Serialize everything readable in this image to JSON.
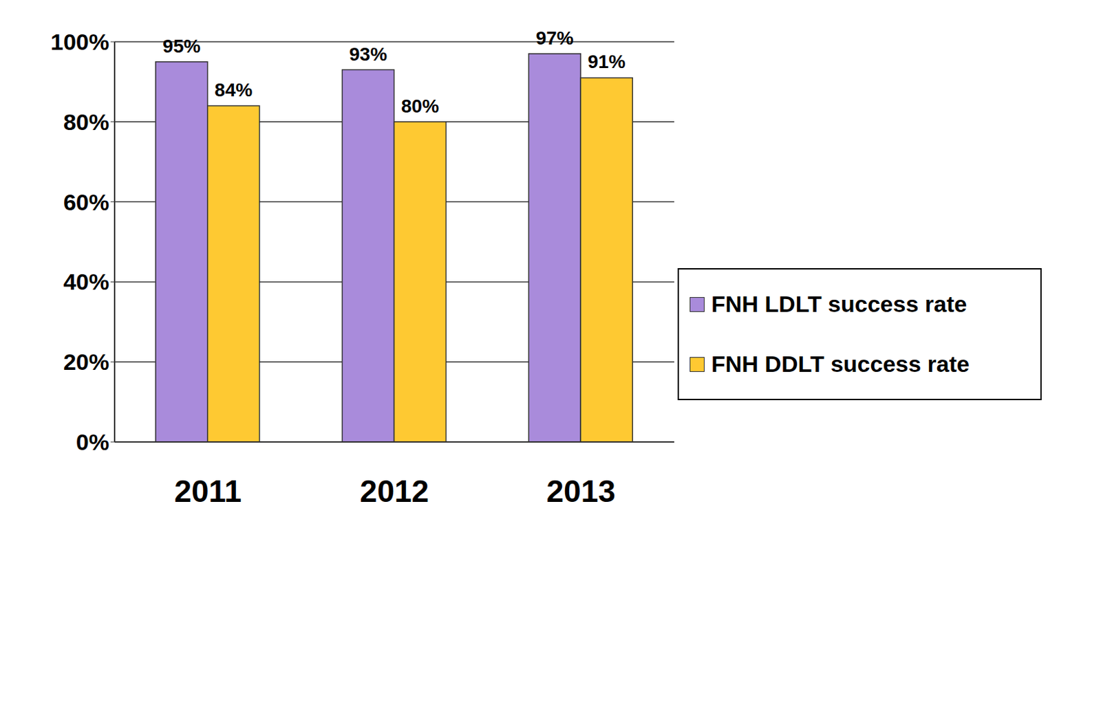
{
  "chart_data": {
    "type": "bar",
    "categories": [
      "2011",
      "2012",
      "2013"
    ],
    "series": [
      {
        "name": "FNH LDLT success rate",
        "color": "#a98bdb",
        "values": [
          95,
          93,
          97
        ],
        "value_labels": [
          "95%",
          "93%",
          "97%"
        ]
      },
      {
        "name": "FNH DDLT success rate",
        "color": "#fec932",
        "values": [
          84,
          80,
          91
        ],
        "value_labels": [
          "84%",
          "80%",
          "91%"
        ]
      }
    ],
    "ylim": [
      0,
      100
    ],
    "yticks": [
      {
        "value": 0,
        "label": "0%"
      },
      {
        "value": 20,
        "label": "20%"
      },
      {
        "value": 40,
        "label": "40%"
      },
      {
        "value": 60,
        "label": "60%"
      },
      {
        "value": 80,
        "label": "80%"
      },
      {
        "value": 100,
        "label": "100%"
      }
    ],
    "grid": true,
    "legend": "right",
    "data_labels": true
  }
}
